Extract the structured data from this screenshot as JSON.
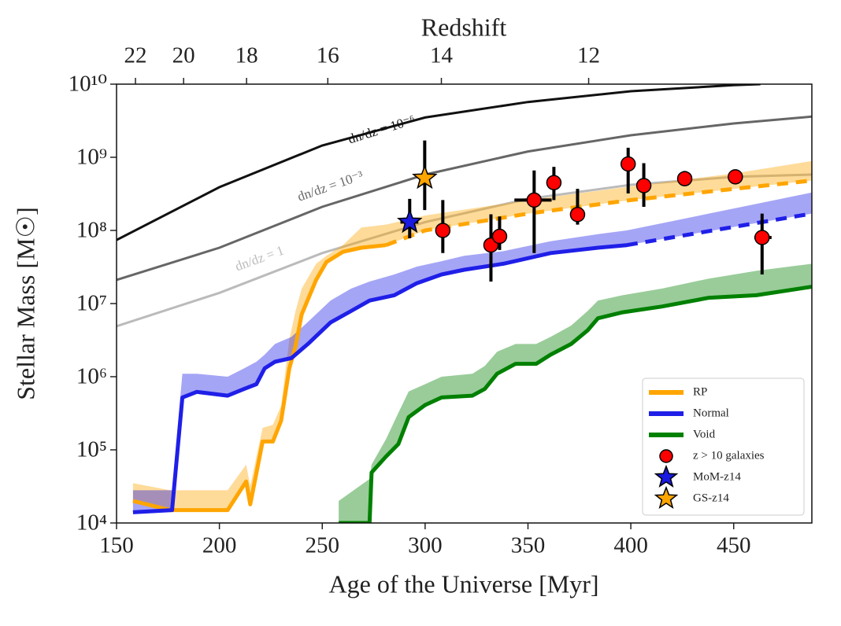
{
  "chart_data": {
    "type": "line",
    "title": "Redshift",
    "xlabel": "Age of the Universe [Myr]",
    "ylabel": "Stellar Mass [M☉]",
    "xlim": [
      150,
      488
    ],
    "ylim": [
      10000,
      10000000000
    ],
    "log_y": true,
    "xticks": [
      150,
      200,
      250,
      300,
      350,
      400,
      450
    ],
    "yticks": [
      {
        "value": 10000,
        "label": "10⁴"
      },
      {
        "value": 100000,
        "label": "10⁵"
      },
      {
        "value": 1000000,
        "label": "10⁶"
      },
      {
        "value": 10000000,
        "label": "10⁷"
      },
      {
        "value": 100000000,
        "label": "10⁸"
      },
      {
        "value": 1000000000,
        "label": "10⁹"
      },
      {
        "value": 10000000000,
        "label": "10¹⁰"
      }
    ],
    "x2ticks": [
      {
        "value": 159.2,
        "label": "22"
      },
      {
        "value": 182.6,
        "label": "20"
      },
      {
        "value": 213.2,
        "label": "18"
      },
      {
        "value": 252.7,
        "label": "16"
      },
      {
        "value": 307.9,
        "label": "14"
      },
      {
        "value": 379.5,
        "label": "12"
      }
    ],
    "legend": "lower right",
    "curves": [
      {
        "label": "dn/dz = 10⁻⁶",
        "color": "#111111",
        "x": [
          150,
          200,
          250,
          300,
          350,
          400,
          450,
          463
        ],
        "values": [
          74000000,
          390000000,
          1450000000,
          3500000000,
          5700000000,
          8000000000,
          9700000000,
          10000000000
        ]
      },
      {
        "label": "dn/dz = 10⁻³",
        "color": "#666666",
        "x": [
          150,
          200,
          250,
          300,
          350,
          400,
          450,
          488
        ],
        "values": [
          21000000,
          58000000,
          210000000,
          580000000,
          1200000000,
          2000000000,
          2900000000,
          3600000000
        ]
      },
      {
        "label": "dn/dz = 1",
        "color": "#bbbbbb",
        "x": [
          150,
          200,
          250,
          300,
          350,
          400,
          450,
          488
        ],
        "values": [
          4900000,
          14000000,
          49000000,
          130000000,
          270000000,
          420000000,
          540000000,
          580000000
        ]
      }
    ],
    "series": [
      {
        "name": "RP",
        "kind": "line",
        "color": "#ffa500",
        "dashed_after": 281,
        "x": [
          158,
          176,
          204,
          213,
          215,
          221,
          226,
          230,
          234,
          237,
          240,
          247,
          252,
          260,
          269,
          281,
          300,
          350,
          400,
          450,
          488
        ],
        "values": [
          20000,
          15000,
          15000,
          37000,
          18000,
          130000,
          130000,
          250000,
          1300000,
          2600000,
          7100000,
          21000000,
          37000000,
          51000000,
          58000000,
          63000000,
          100000000,
          170000000,
          260000000,
          370000000,
          480000000
        ],
        "upper": [
          35000,
          28000,
          28000,
          63000,
          32000,
          200000,
          220000,
          400000,
          3200000,
          7900000,
          16000000,
          35000000,
          45000000,
          63000000,
          110000000,
          120000000,
          160000000,
          260000000,
          400000000,
          600000000,
          890000000
        ]
      },
      {
        "name": "Normal",
        "kind": "line",
        "color": "#1f1fe8",
        "dashed_after": 398,
        "x": [
          158,
          177,
          182,
          189,
          204,
          212,
          218,
          222,
          227,
          235,
          243,
          254,
          264,
          273,
          285,
          296,
          308,
          319,
          338,
          361,
          384,
          398,
          488
        ],
        "values": [
          14000,
          15000,
          520000,
          620000,
          550000,
          680000,
          790000,
          1300000,
          1600000,
          1800000,
          2800000,
          5500000,
          7900000,
          11000000,
          13000000,
          19000000,
          25000000,
          29000000,
          35000000,
          49000000,
          58000000,
          63000000,
          170000000
        ],
        "upper": [
          28000,
          28000,
          1100000,
          1100000,
          1000000,
          1300000,
          1600000,
          2000000,
          2800000,
          3500000,
          5600000,
          11000000,
          16000000,
          20000000,
          25000000,
          32000000,
          38000000,
          45000000,
          52000000,
          71000000,
          89000000,
          100000000,
          330000000
        ]
      },
      {
        "name": "Void",
        "kind": "line",
        "color": "#008000",
        "x": [
          258,
          273,
          274,
          281,
          287,
          292,
          300,
          308,
          323,
          329,
          335,
          344,
          354,
          361,
          371,
          379,
          384,
          396,
          415,
          438,
          461,
          488
        ],
        "values": [
          10000,
          10000,
          49000,
          81000,
          120000,
          280000,
          410000,
          520000,
          550000,
          680000,
          1100000,
          1500000,
          1500000,
          2000000,
          2800000,
          4300000,
          6300000,
          7600000,
          9100000,
          12000000,
          13000000,
          17000000
        ],
        "upper": [
          20000,
          40000,
          63000,
          140000,
          320000,
          630000,
          790000,
          1000000,
          1100000,
          1400000,
          2200000,
          2800000,
          2800000,
          3500000,
          5000000,
          7900000,
          11000000,
          13000000,
          16000000,
          22000000,
          28000000,
          35000000
        ]
      },
      {
        "name": "z > 10 galaxies",
        "kind": "scatter",
        "marker": "circle",
        "color": "#ff0000",
        "x": [
          308.6,
          332,
          336.2,
          353,
          362.6,
          374.1,
          398.7,
          406.3,
          426.2,
          450.8,
          463.8
        ],
        "values": [
          100000000,
          63000000,
          83000000,
          260000000,
          450000000,
          165000000,
          810000000,
          410000000,
          510000000,
          540000000,
          80000000
        ],
        "y_low": [
          49000000,
          20000000,
          54000000,
          49000000,
          260000000,
          120000000,
          320000000,
          210000000,
          420000000,
          490000000,
          25000000
        ],
        "y_high": [
          260000000,
          166000000,
          155000000,
          660000000,
          740000000,
          370000000,
          1350000000,
          830000000,
          650000000,
          590000000,
          170000000
        ],
        "x_low": [
          null,
          null,
          null,
          343.4,
          null,
          null,
          null,
          null,
          null,
          null,
          460
        ],
        "x_high": [
          null,
          null,
          null,
          361.5,
          null,
          null,
          null,
          null,
          null,
          null,
          468.4
        ]
      },
      {
        "name": "MoM-z14",
        "kind": "scatter",
        "marker": "star",
        "color": "#1a1ae0",
        "x": [
          292.5
        ],
        "values": [
          130000000
        ],
        "y_low": [
          78000000
        ],
        "y_high": [
          270000000
        ],
        "x_low": [
          288
        ],
        "x_high": [
          296.7
        ]
      },
      {
        "name": "GS-z14",
        "kind": "scatter",
        "marker": "star",
        "color": "#ffa500",
        "x": [
          299.8
        ],
        "values": [
          520000000
        ],
        "y_low": [
          190000000
        ],
        "y_high": [
          1700000000
        ],
        "x_low": [
          null
        ],
        "x_high": [
          null
        ]
      }
    ]
  }
}
